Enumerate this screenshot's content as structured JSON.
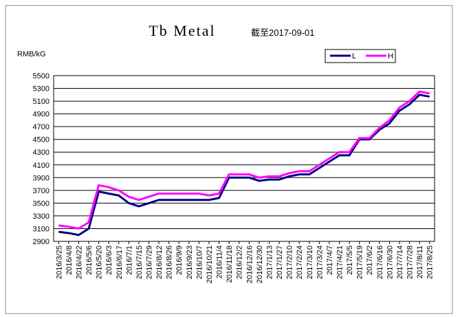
{
  "chart_data": {
    "type": "line",
    "title": "Tb Metal",
    "subtitle": "截至2017-09-01",
    "y_label": "RMB/kG",
    "categories": [
      "2016/3/25",
      "2016/4/8",
      "2016/4/22",
      "2016/5/6",
      "2016/5/20",
      "2016/6/3",
      "2016/6/17",
      "2016/7/1",
      "2016/7/15",
      "2016/7/29",
      "2016/8/12",
      "2016/8/26",
      "2016/9/9",
      "2016/9/23",
      "2016/10/7",
      "2016/10/21",
      "2016/11/4",
      "2016/11/18",
      "2016/12/2",
      "2016/12/16",
      "2016/12/30",
      "2017/1/13",
      "2017/1/27",
      "2017/2/10",
      "2017/2/24",
      "2017/3/10",
      "2017/3/24",
      "2017/4/7",
      "2017/4/21",
      "2017/5/5",
      "2017/5/19",
      "2017/6/2",
      "2017/6/16",
      "2017/6/30",
      "2017/7/14",
      "2017/7/28",
      "2017/8/11",
      "2017/8/25"
    ],
    "series": [
      {
        "name": "L",
        "color": "#000080",
        "values": [
          3050,
          3030,
          3000,
          3100,
          3680,
          3650,
          3620,
          3500,
          3450,
          3500,
          3550,
          3550,
          3550,
          3550,
          3550,
          3550,
          3580,
          3900,
          3900,
          3900,
          3850,
          3870,
          3870,
          3920,
          3950,
          3950,
          4050,
          4150,
          4250,
          4250,
          4500,
          4500,
          4650,
          4750,
          4950,
          5050,
          5200,
          5170
        ]
      },
      {
        "name": "H",
        "color": "#ff00ff",
        "values": [
          3150,
          3130,
          3100,
          3200,
          3780,
          3750,
          3700,
          3600,
          3550,
          3600,
          3650,
          3650,
          3650,
          3650,
          3650,
          3620,
          3650,
          3950,
          3950,
          3950,
          3900,
          3920,
          3920,
          3970,
          4000,
          4000,
          4100,
          4200,
          4300,
          4300,
          4520,
          4520,
          4680,
          4800,
          5000,
          5100,
          5250,
          5220
        ]
      }
    ],
    "ylim": [
      2900,
      5500
    ],
    "yticks": [
      2900,
      3100,
      3300,
      3500,
      3700,
      3900,
      4100,
      4300,
      4500,
      4700,
      4900,
      5100,
      5300,
      5500
    ],
    "grid": true,
    "legend": "top-right"
  }
}
